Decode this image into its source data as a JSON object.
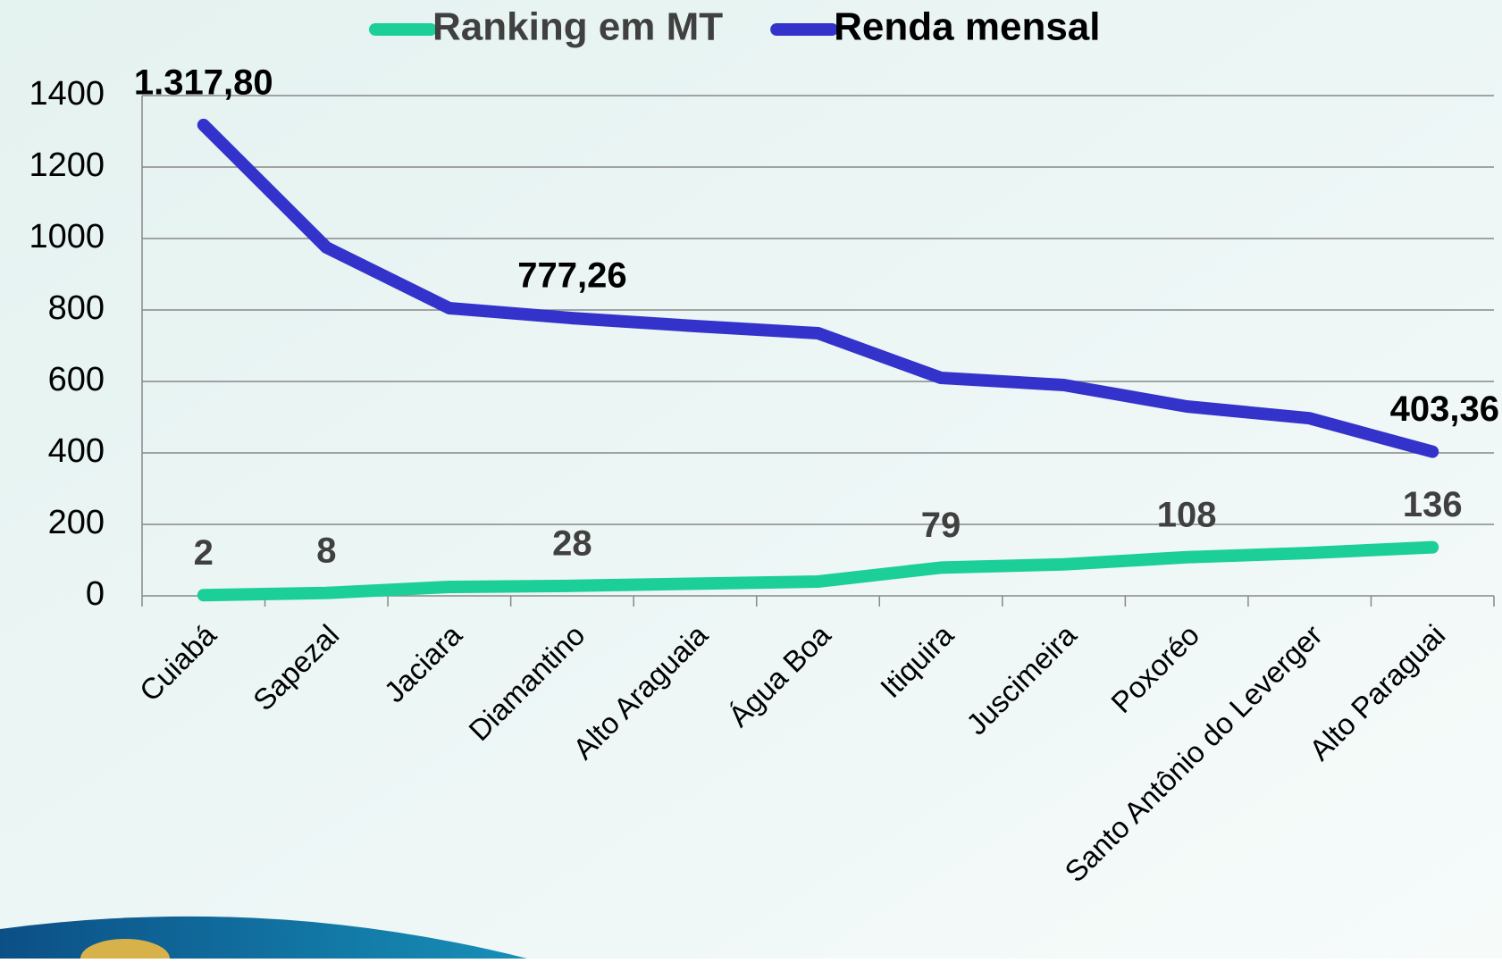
{
  "chart_data": {
    "type": "line",
    "categories": [
      "Cuiabá",
      "Sapezal",
      "Jaciara",
      "Diamantino",
      "Alto Araguaia",
      "Água Boa",
      "Itiquira",
      "Juscimeira",
      "Poxoréo",
      "Santo Antônio do Leverger",
      "Alto Paraguai"
    ],
    "series": [
      {
        "name": "Ranking em MT",
        "color": "#1ccf98",
        "values": [
          2,
          8,
          25,
          28,
          34,
          40,
          79,
          88,
          108,
          120,
          136
        ],
        "value_labels": [
          "2",
          "8",
          null,
          "28",
          null,
          null,
          "79",
          null,
          "108",
          null,
          "136"
        ]
      },
      {
        "name": "Renda mensal",
        "color": "#3333cc",
        "values": [
          1317.8,
          975,
          805,
          777.26,
          755,
          735,
          610,
          590,
          530,
          497,
          403.36
        ],
        "value_labels": [
          "1.317,80",
          null,
          null,
          "777,26",
          null,
          null,
          null,
          null,
          null,
          null,
          "403,36"
        ]
      }
    ],
    "ylim": [
      0,
      1400
    ],
    "yticks": [
      0,
      200,
      400,
      600,
      800,
      1000,
      1200,
      1400
    ],
    "grid": true,
    "legend": "top"
  }
}
